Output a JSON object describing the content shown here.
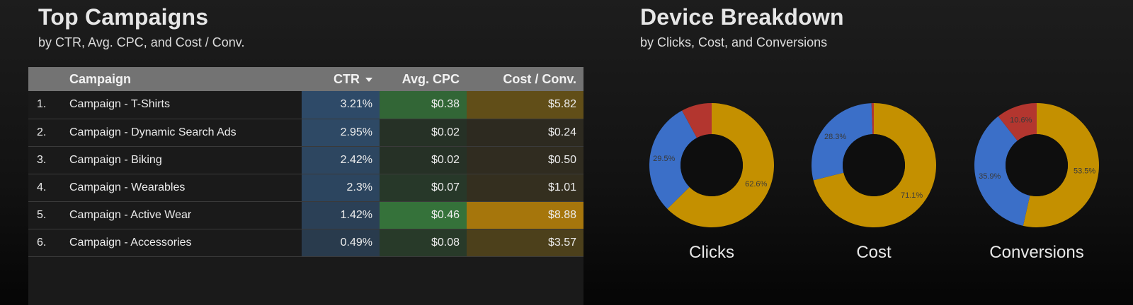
{
  "left_panel": {
    "title": "Top Campaigns",
    "subtitle": "by CTR, Avg. CPC, and Cost / Conv.",
    "table": {
      "headers": {
        "campaign": "Campaign",
        "ctr": "CTR",
        "avg_cpc": "Avg. CPC",
        "cost_conv": "Cost / Conv."
      },
      "sort_column": "CTR",
      "rows": [
        {
          "rank": "1.",
          "campaign": "Campaign - T-Shirts",
          "ctr": "3.21%",
          "avg_cpc": "$0.38",
          "cost_conv": "$5.82"
        },
        {
          "rank": "2.",
          "campaign": "Campaign - Dynamic Search Ads",
          "ctr": "2.95%",
          "avg_cpc": "$0.02",
          "cost_conv": "$0.24"
        },
        {
          "rank": "3.",
          "campaign": "Campaign - Biking",
          "ctr": "2.42%",
          "avg_cpc": "$0.02",
          "cost_conv": "$0.50"
        },
        {
          "rank": "4.",
          "campaign": "Campaign - Wearables",
          "ctr": "2.3%",
          "avg_cpc": "$0.07",
          "cost_conv": "$1.01"
        },
        {
          "rank": "5.",
          "campaign": "Campaign - Active Wear",
          "ctr": "1.42%",
          "avg_cpc": "$0.46",
          "cost_conv": "$8.88"
        },
        {
          "rank": "6.",
          "campaign": "Campaign - Accessories",
          "ctr": "0.49%",
          "avg_cpc": "$0.08",
          "cost_conv": "$3.57"
        }
      ]
    },
    "heatmap_colors": {
      "ctr": "#2e4a68",
      "avg_cpc": "#35723a",
      "cost_conv": "#7d6213",
      "cost_conv_max": "#a6760c"
    }
  },
  "right_panel": {
    "title": "Device Breakdown",
    "subtitle": "by Clicks, Cost, and Conversions",
    "colors": {
      "yellow": "#c49000",
      "blue": "#3b6fc8",
      "red": "#b3362f"
    },
    "donuts": [
      {
        "label": "Clicks",
        "slices": [
          {
            "value": 62.6,
            "label": "62.6%",
            "color": "#c49000"
          },
          {
            "value": 29.5,
            "label": "29.5%",
            "color": "#3b6fc8"
          },
          {
            "value": 7.9,
            "label": "",
            "color": "#b3362f"
          }
        ]
      },
      {
        "label": "Cost",
        "slices": [
          {
            "value": 71.1,
            "label": "71.1%",
            "color": "#c49000"
          },
          {
            "value": 28.3,
            "label": "28.3%",
            "color": "#3b6fc8"
          },
          {
            "value": 0.6,
            "label": "",
            "color": "#b3362f"
          }
        ]
      },
      {
        "label": "Conversions",
        "slices": [
          {
            "value": 53.5,
            "label": "53.5%",
            "color": "#c49000"
          },
          {
            "value": 35.9,
            "label": "35.9%",
            "color": "#3b6fc8"
          },
          {
            "value": 10.6,
            "label": "10.6%",
            "color": "#b3362f"
          }
        ]
      }
    ]
  }
}
